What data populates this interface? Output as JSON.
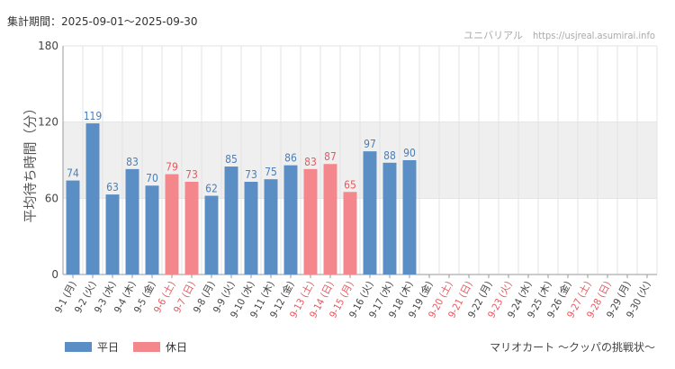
{
  "header": {
    "period": "集計期間：2025-09-01～2025-09-30",
    "source": "ユニバリアル　https://usjreal.asumirai.info"
  },
  "legend": {
    "weekday_label": "平日",
    "holiday_label": "休日"
  },
  "footer": {
    "attraction_name": "マリオカート ～クッパの挑戦状～"
  },
  "colors": {
    "weekday": "#5b8ec4",
    "holiday": "#f4878c",
    "holiday_text": "#e8595f",
    "band": "#efefef",
    "grid": "#e3e3e3"
  },
  "chart_data": {
    "type": "bar",
    "ylabel": "平均待ち時間（分）",
    "ylim": [
      0,
      180
    ],
    "yticks": [
      0,
      60,
      120,
      180
    ],
    "highlight_band": [
      60,
      120
    ],
    "grid": true,
    "legend_position": "bottom-left",
    "categories": [
      "9-1 (月)",
      "9-2 (火)",
      "9-3 (水)",
      "9-4 (木)",
      "9-5 (金)",
      "9-6 (土)",
      "9-7 (日)",
      "9-8 (月)",
      "9-9 (火)",
      "9-10 (水)",
      "9-11 (木)",
      "9-12 (金)",
      "9-13 (土)",
      "9-14 (日)",
      "9-15 (月)",
      "9-16 (火)",
      "9-17 (水)",
      "9-18 (木)",
      "9-19 (金)",
      "9-20 (土)",
      "9-21 (日)",
      "9-22 (月)",
      "9-23 (火)",
      "9-24 (水)",
      "9-25 (木)",
      "9-26 (金)",
      "9-27 (土)",
      "9-28 (日)",
      "9-29 (月)",
      "9-30 (火)"
    ],
    "values": [
      74,
      119,
      63,
      83,
      70,
      79,
      73,
      62,
      85,
      73,
      75,
      86,
      83,
      87,
      65,
      97,
      88,
      90,
      null,
      null,
      null,
      null,
      null,
      null,
      null,
      null,
      null,
      null,
      null,
      null
    ],
    "holiday": [
      false,
      false,
      false,
      false,
      false,
      true,
      true,
      false,
      false,
      false,
      false,
      false,
      true,
      true,
      true,
      false,
      false,
      false,
      false,
      true,
      true,
      false,
      true,
      false,
      false,
      false,
      true,
      true,
      false,
      false
    ]
  }
}
